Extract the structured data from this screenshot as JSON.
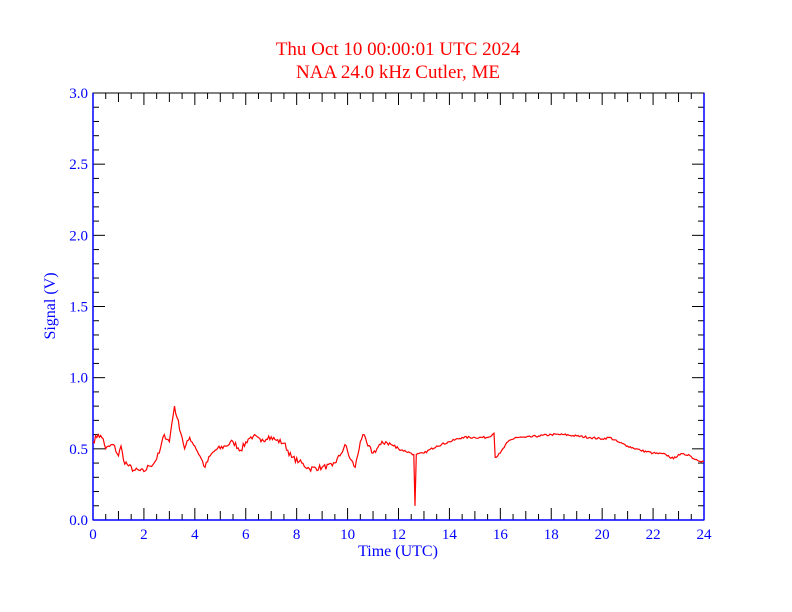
{
  "chart_data": {
    "type": "line",
    "title": "Thu Oct 10 00:00:01 UTC 2024",
    "subtitle": "NAA 24.0 kHz Cutler, ME",
    "xlabel": "Time (UTC)",
    "ylabel": "Signal (V)",
    "xlim": [
      0,
      24
    ],
    "ylim": [
      0,
      3.0
    ],
    "xticks": [
      "0",
      "2",
      "4",
      "6",
      "8",
      "10",
      "12",
      "14",
      "16",
      "18",
      "20",
      "22",
      "24"
    ],
    "yticks": [
      "0.0",
      "0.5",
      "1.0",
      "1.5",
      "2.0",
      "2.5",
      "3.0"
    ],
    "grid": false,
    "colors": {
      "title": "#ff0000",
      "axis": "#0000ff",
      "line": "#ff0000",
      "frame": "#000000"
    },
    "series": [
      {
        "name": "Signal",
        "x": [
          0,
          0.2,
          0.4,
          0.5,
          0.8,
          1.0,
          1.1,
          1.2,
          1.4,
          1.6,
          2.0,
          2.2,
          2.4,
          2.6,
          2.8,
          3.0,
          3.1,
          3.2,
          3.3,
          3.5,
          3.6,
          3.8,
          4.0,
          4.2,
          4.4,
          4.6,
          4.8,
          5.2,
          5.5,
          5.8,
          6.1,
          6.3,
          6.6,
          6.9,
          7.2,
          7.5,
          7.8,
          8.1,
          8.5,
          9.0,
          9.4,
          9.7,
          9.9,
          10.1,
          10.3,
          10.5,
          10.6,
          10.8,
          11.0,
          11.3,
          11.5,
          12.0,
          12.5,
          12.6,
          12.65,
          12.7,
          13.0,
          13.5,
          14.0,
          14.5,
          15.0,
          15.5,
          15.75,
          15.8,
          16.0,
          16.3,
          16.6,
          17.0,
          17.5,
          18.0,
          18.5,
          19.0,
          19.5,
          20.0,
          20.3,
          20.6,
          21.0,
          21.5,
          22.0,
          22.5,
          22.8,
          23.0,
          23.4,
          23.6,
          24.0
        ],
        "y": [
          0.55,
          0.6,
          0.57,
          0.5,
          0.53,
          0.45,
          0.52,
          0.42,
          0.38,
          0.35,
          0.34,
          0.38,
          0.4,
          0.47,
          0.6,
          0.55,
          0.68,
          0.8,
          0.72,
          0.58,
          0.5,
          0.58,
          0.52,
          0.45,
          0.37,
          0.45,
          0.49,
          0.52,
          0.55,
          0.49,
          0.57,
          0.59,
          0.55,
          0.59,
          0.56,
          0.54,
          0.44,
          0.41,
          0.36,
          0.37,
          0.38,
          0.45,
          0.53,
          0.43,
          0.37,
          0.55,
          0.6,
          0.52,
          0.47,
          0.53,
          0.55,
          0.5,
          0.47,
          0.46,
          0.1,
          0.46,
          0.47,
          0.52,
          0.55,
          0.58,
          0.58,
          0.58,
          0.61,
          0.44,
          0.47,
          0.55,
          0.58,
          0.58,
          0.59,
          0.6,
          0.6,
          0.59,
          0.58,
          0.57,
          0.58,
          0.55,
          0.52,
          0.49,
          0.47,
          0.46,
          0.43,
          0.46,
          0.46,
          0.43,
          0.41
        ]
      }
    ]
  }
}
